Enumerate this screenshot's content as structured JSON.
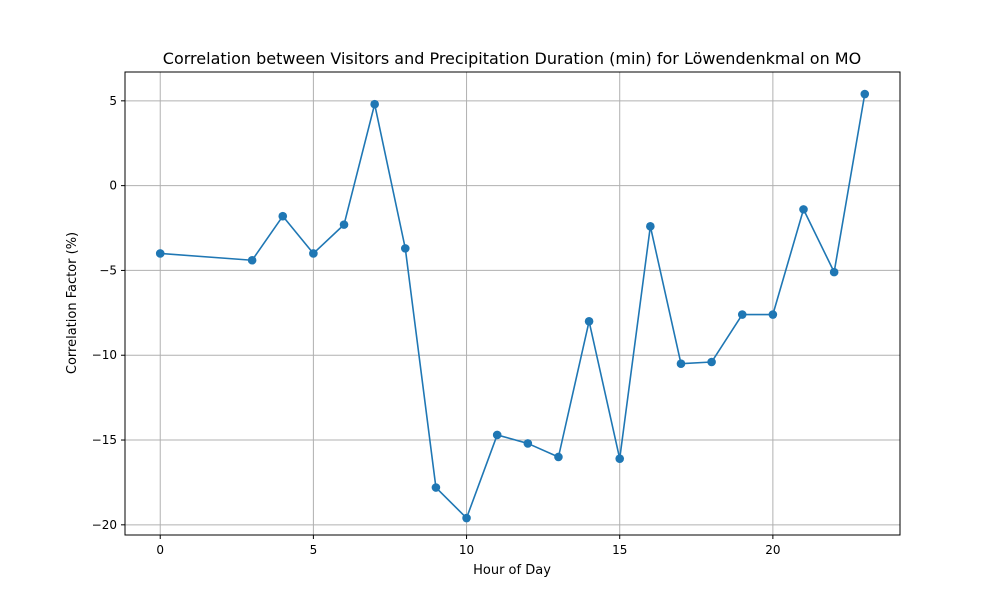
{
  "chart_data": {
    "type": "line",
    "title": "Correlation between Visitors and Precipitation Duration (min) for Löwendenkmal on MO",
    "xlabel": "Hour of Day",
    "ylabel": "Correlation Factor (%)",
    "xlim": [
      -1.15,
      24.15
    ],
    "ylim": [
      -20.6,
      6.7
    ],
    "xticks": [
      0,
      5,
      10,
      15,
      20
    ],
    "yticks": [
      -20,
      -15,
      -10,
      -5,
      0,
      5
    ],
    "grid": true,
    "marker": "circle",
    "color": "#1f77b4",
    "series": [
      {
        "x": [
          0,
          3,
          4,
          5,
          6,
          7,
          8,
          9,
          10,
          11,
          12,
          13,
          14,
          15,
          16,
          17,
          18,
          19,
          20,
          21,
          22,
          23
        ],
        "y": [
          -4.0,
          -4.4,
          -1.8,
          -4.0,
          -2.3,
          4.8,
          -3.7,
          -17.8,
          -19.6,
          -14.7,
          -15.2,
          -16.0,
          -8.0,
          -16.1,
          -2.4,
          -10.5,
          -10.4,
          -7.6,
          -7.6,
          -1.4,
          -5.1,
          5.4
        ]
      }
    ]
  }
}
